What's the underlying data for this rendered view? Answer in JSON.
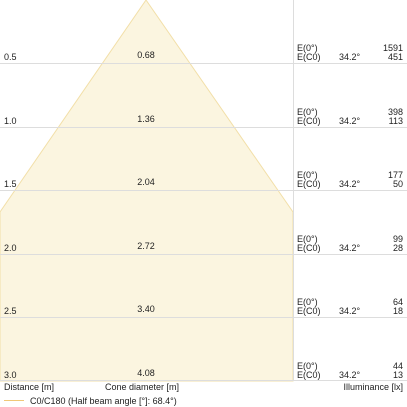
{
  "rows": [
    {
      "distance": "0.5",
      "cone_diameter": "0.68",
      "e0_label": "E(0°)",
      "ec0_label": "E(C0)",
      "angle": "34.2°",
      "e0_value": "1591",
      "ec0_value": "451"
    },
    {
      "distance": "1.0",
      "cone_diameter": "1.36",
      "e0_label": "E(0°)",
      "ec0_label": "E(C0)",
      "angle": "34.2°",
      "e0_value": "398",
      "ec0_value": "113"
    },
    {
      "distance": "1.5",
      "cone_diameter": "2.04",
      "e0_label": "E(0°)",
      "ec0_label": "E(C0)",
      "angle": "34.2°",
      "e0_value": "177",
      "ec0_value": "50"
    },
    {
      "distance": "2.0",
      "cone_diameter": "2.72",
      "e0_label": "E(0°)",
      "ec0_label": "E(C0)",
      "angle": "34.2°",
      "e0_value": "99",
      "ec0_value": "28"
    },
    {
      "distance": "2.5",
      "cone_diameter": "3.40",
      "e0_label": "E(0°)",
      "ec0_label": "E(C0)",
      "angle": "34.2°",
      "e0_value": "64",
      "ec0_value": "18"
    },
    {
      "distance": "3.0",
      "cone_diameter": "4.08",
      "e0_label": "E(0°)",
      "ec0_label": "E(C0)",
      "angle": "34.2°",
      "e0_value": "44",
      "ec0_value": "13"
    }
  ],
  "footer": {
    "distance_label": "Distance [m]",
    "cone_label": "Cone diameter [m]",
    "illuminance_label": "Illuminance [lx]",
    "legend_label": "C0/C180 (Half beam angle [°]: 68.4°)"
  },
  "colors": {
    "cone_fill": "#fbf5e0",
    "cone_edge": "#f2dfa8",
    "grid": "#dddddd",
    "legend_line": "#f0c878"
  }
}
